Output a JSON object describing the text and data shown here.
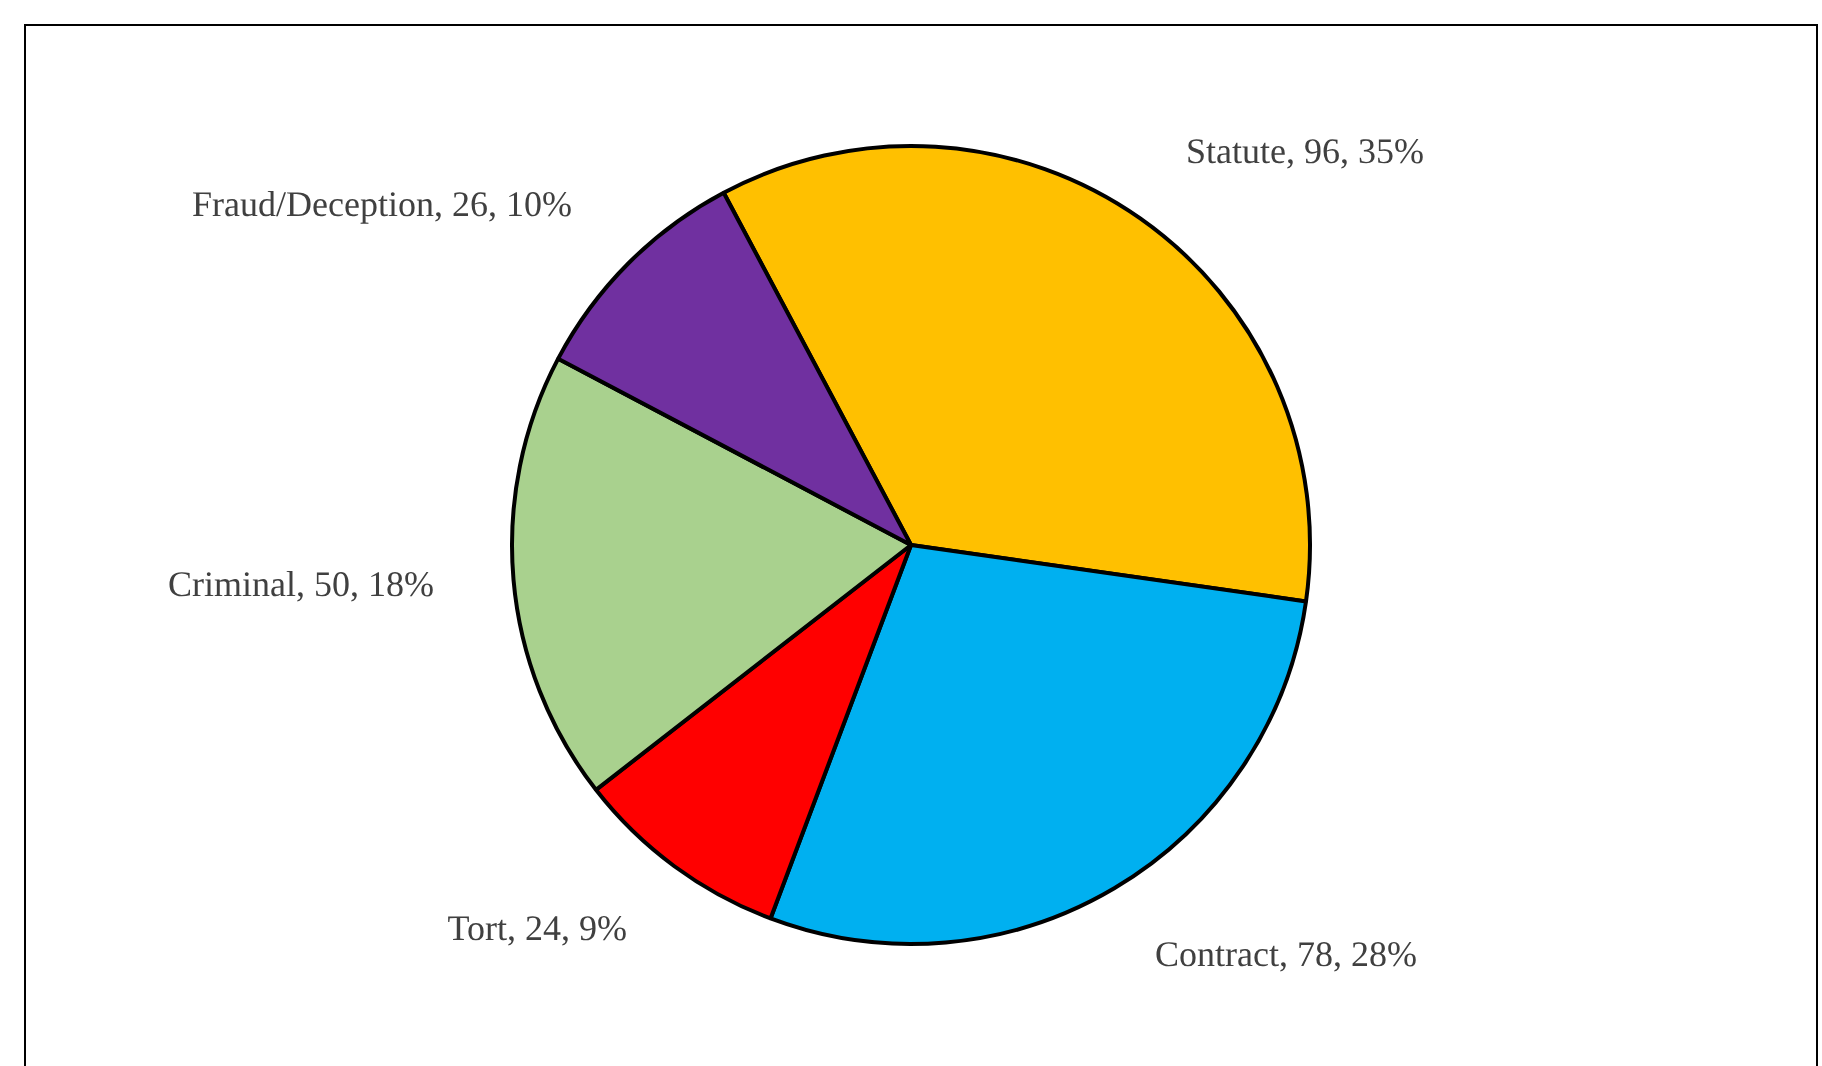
{
  "chart_data": {
    "type": "pie",
    "categories": [
      "Statute",
      "Contract",
      "Tort",
      "Criminal",
      "Fraud/Deception"
    ],
    "values": [
      96,
      78,
      24,
      50,
      26
    ],
    "colors": [
      "#ffc000",
      "#00b0f0",
      "#ff0000",
      "#a9d18e",
      "#7030a0"
    ],
    "value_labels": [
      "96, 35%",
      "78, 28%",
      "24, 9%",
      "50, 18%",
      "26, 10%"
    ],
    "legend": false
  }
}
